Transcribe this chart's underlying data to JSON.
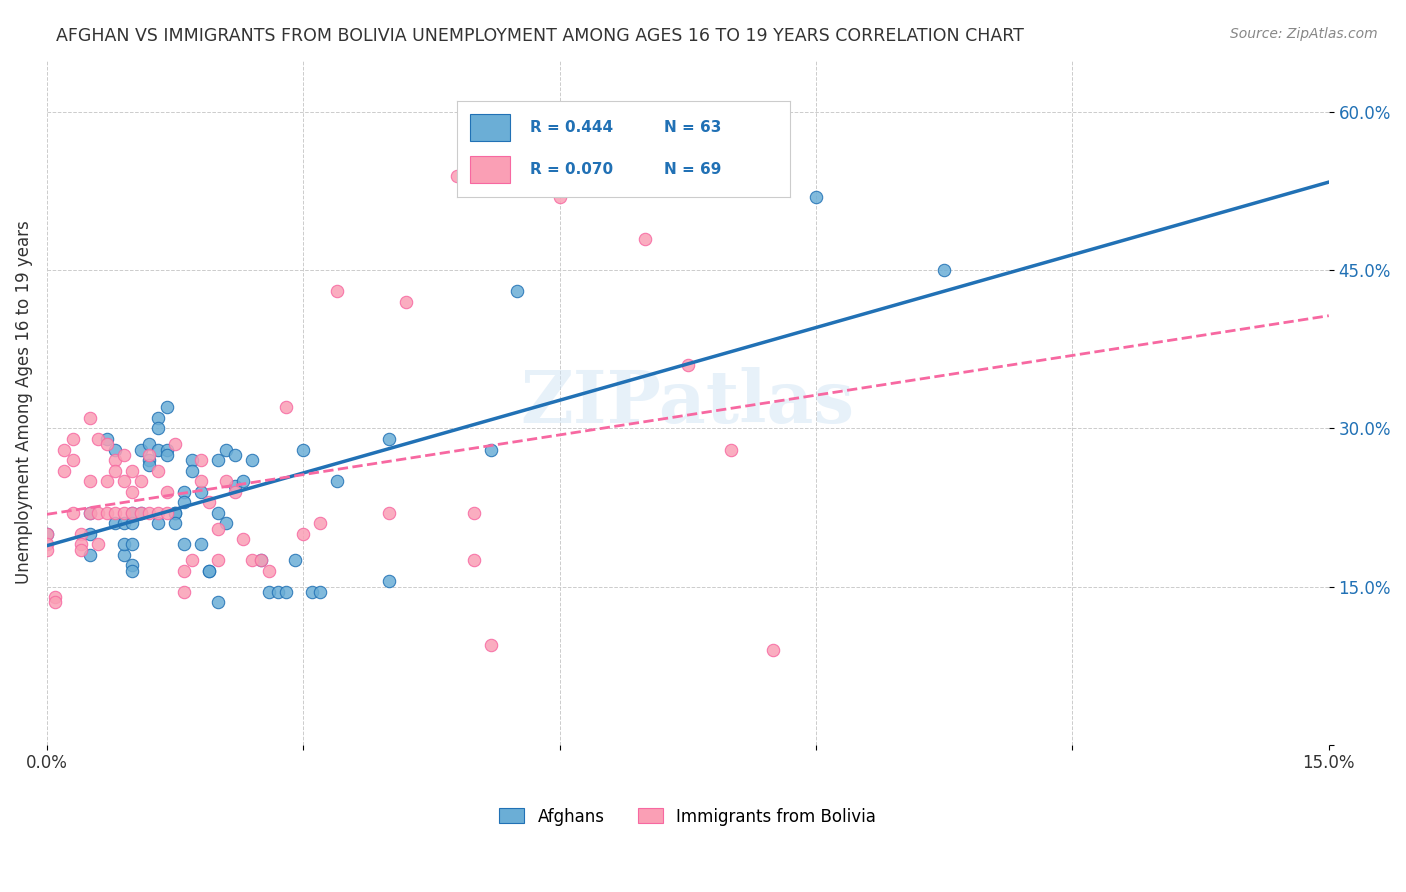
{
  "title": "AFGHAN VS IMMIGRANTS FROM BOLIVIA UNEMPLOYMENT AMONG AGES 16 TO 19 YEARS CORRELATION CHART",
  "source": "Source: ZipAtlas.com",
  "xlabel_bottom": "",
  "ylabel": "Unemployment Among Ages 16 to 19 years",
  "xlim": [
    0,
    0.15
  ],
  "ylim": [
    0,
    0.65
  ],
  "x_ticks": [
    0.0,
    0.03,
    0.06,
    0.09,
    0.12,
    0.15
  ],
  "x_tick_labels": [
    "0.0%",
    "",
    "",
    "",
    "",
    "15.0%"
  ],
  "y_ticks": [
    0.0,
    0.15,
    0.3,
    0.45,
    0.6
  ],
  "y_tick_labels": [
    "",
    "15.0%",
    "30.0%",
    "45.0%",
    "60.0%"
  ],
  "legend_labels": [
    "Afghans",
    "Immigrants from Bolivia"
  ],
  "blue_color": "#6baed6",
  "pink_color": "#fa9fb5",
  "blue_line_color": "#2171b5",
  "pink_line_color": "#f768a1",
  "watermark": "ZIPatlas",
  "R_blue": 0.444,
  "N_blue": 63,
  "R_pink": 0.07,
  "N_pink": 69,
  "blue_scatter_x": [
    0.0,
    0.005,
    0.005,
    0.005,
    0.007,
    0.008,
    0.008,
    0.009,
    0.009,
    0.009,
    0.01,
    0.01,
    0.01,
    0.01,
    0.01,
    0.011,
    0.011,
    0.012,
    0.012,
    0.012,
    0.013,
    0.013,
    0.013,
    0.013,
    0.014,
    0.014,
    0.014,
    0.015,
    0.015,
    0.015,
    0.016,
    0.016,
    0.016,
    0.017,
    0.017,
    0.018,
    0.018,
    0.019,
    0.019,
    0.02,
    0.02,
    0.02,
    0.021,
    0.021,
    0.022,
    0.022,
    0.023,
    0.024,
    0.025,
    0.026,
    0.027,
    0.028,
    0.029,
    0.03,
    0.031,
    0.032,
    0.034,
    0.04,
    0.04,
    0.052,
    0.055,
    0.09,
    0.105
  ],
  "blue_scatter_y": [
    0.2,
    0.2,
    0.22,
    0.18,
    0.29,
    0.21,
    0.28,
    0.21,
    0.18,
    0.19,
    0.22,
    0.21,
    0.19,
    0.17,
    0.165,
    0.28,
    0.22,
    0.285,
    0.27,
    0.265,
    0.31,
    0.3,
    0.28,
    0.21,
    0.32,
    0.28,
    0.275,
    0.22,
    0.22,
    0.21,
    0.24,
    0.23,
    0.19,
    0.27,
    0.26,
    0.24,
    0.19,
    0.165,
    0.165,
    0.27,
    0.22,
    0.135,
    0.28,
    0.21,
    0.275,
    0.245,
    0.25,
    0.27,
    0.175,
    0.145,
    0.145,
    0.145,
    0.175,
    0.28,
    0.145,
    0.145,
    0.25,
    0.29,
    0.155,
    0.28,
    0.43,
    0.52,
    0.45
  ],
  "pink_scatter_x": [
    0.0,
    0.0,
    0.0,
    0.001,
    0.001,
    0.002,
    0.002,
    0.003,
    0.003,
    0.003,
    0.004,
    0.004,
    0.004,
    0.005,
    0.005,
    0.005,
    0.006,
    0.006,
    0.006,
    0.007,
    0.007,
    0.007,
    0.008,
    0.008,
    0.008,
    0.009,
    0.009,
    0.009,
    0.01,
    0.01,
    0.01,
    0.011,
    0.011,
    0.012,
    0.012,
    0.013,
    0.013,
    0.014,
    0.014,
    0.015,
    0.016,
    0.016,
    0.017,
    0.018,
    0.018,
    0.019,
    0.02,
    0.02,
    0.021,
    0.022,
    0.023,
    0.024,
    0.025,
    0.026,
    0.028,
    0.03,
    0.032,
    0.034,
    0.04,
    0.042,
    0.048,
    0.05,
    0.05,
    0.052,
    0.06,
    0.07,
    0.075,
    0.08,
    0.085
  ],
  "pink_scatter_y": [
    0.2,
    0.19,
    0.185,
    0.14,
    0.135,
    0.28,
    0.26,
    0.29,
    0.27,
    0.22,
    0.2,
    0.19,
    0.185,
    0.31,
    0.25,
    0.22,
    0.29,
    0.22,
    0.19,
    0.285,
    0.25,
    0.22,
    0.27,
    0.26,
    0.22,
    0.275,
    0.25,
    0.22,
    0.26,
    0.24,
    0.22,
    0.25,
    0.22,
    0.275,
    0.22,
    0.26,
    0.22,
    0.24,
    0.22,
    0.285,
    0.165,
    0.145,
    0.175,
    0.27,
    0.25,
    0.23,
    0.205,
    0.175,
    0.25,
    0.24,
    0.195,
    0.175,
    0.175,
    0.165,
    0.32,
    0.2,
    0.21,
    0.43,
    0.22,
    0.42,
    0.54,
    0.175,
    0.22,
    0.095,
    0.52,
    0.48,
    0.36,
    0.28,
    0.09
  ],
  "background_color": "#ffffff",
  "grid_color": "#cccccc"
}
